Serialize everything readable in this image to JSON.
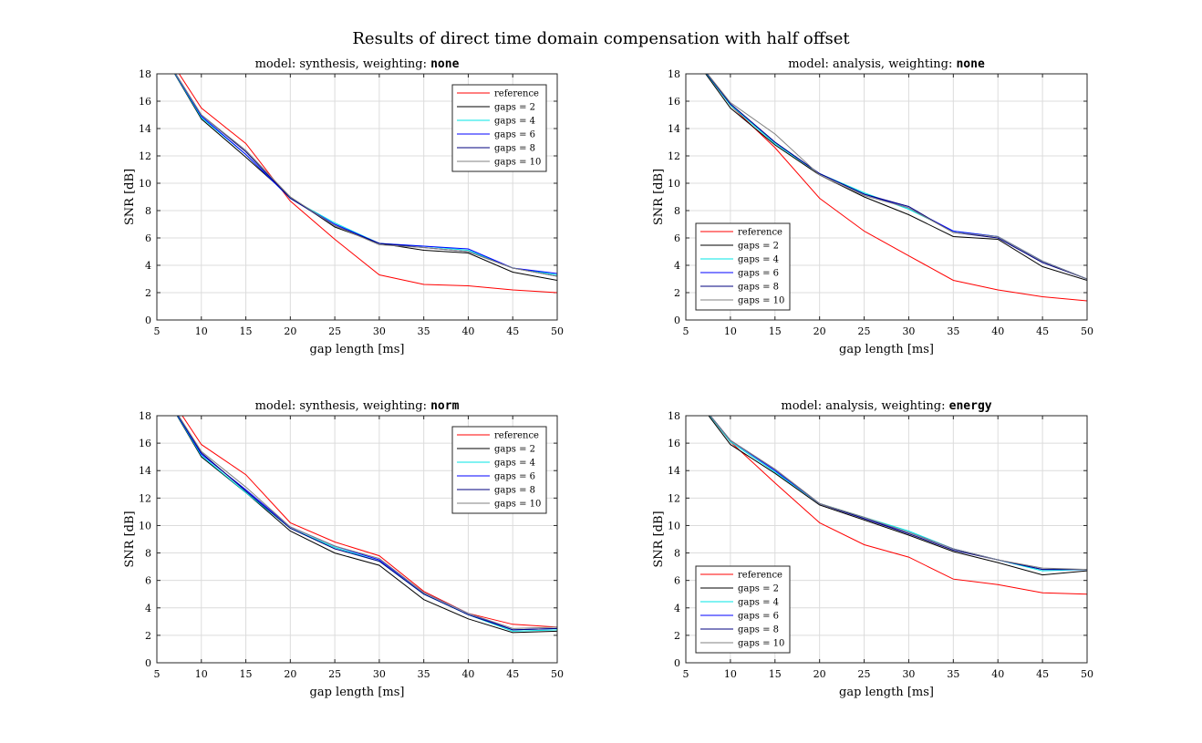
{
  "figure": {
    "title": "Results of direct time domain compensation with half offset"
  },
  "chart_data": [
    {
      "type": "line",
      "title_prefix": "model: synthesis, weighting: ",
      "title_code": "none",
      "xlabel": "gap length [ms]",
      "ylabel": "SNR [dB]",
      "xlim": [
        5,
        50
      ],
      "ylim": [
        0,
        18
      ],
      "xticks": [
        5,
        10,
        15,
        20,
        25,
        30,
        35,
        40,
        45,
        50
      ],
      "yticks": [
        0,
        2,
        4,
        6,
        8,
        10,
        12,
        14,
        16,
        18
      ],
      "grid": true,
      "legend_position": "top-right",
      "x": [
        5,
        10,
        15,
        20,
        25,
        30,
        35,
        40,
        45,
        50
      ],
      "series": [
        {
          "name": "reference",
          "color": "#ff0000",
          "values": [
            20.5,
            15.5,
            12.9,
            8.7,
            5.9,
            3.3,
            2.6,
            2.5,
            2.2,
            2.0
          ]
        },
        {
          "name": "gaps = 2",
          "color": "#000000",
          "values": [
            20.2,
            14.7,
            11.9,
            9.0,
            6.8,
            5.6,
            5.1,
            4.9,
            3.5,
            2.9
          ]
        },
        {
          "name": "gaps = 4",
          "color": "#00e5e5",
          "values": [
            20.2,
            14.8,
            12.1,
            8.9,
            7.1,
            5.6,
            5.4,
            5.1,
            3.8,
            3.3
          ]
        },
        {
          "name": "gaps = 6",
          "color": "#0000ff",
          "values": [
            20.2,
            14.9,
            12.1,
            8.9,
            7.0,
            5.6,
            5.4,
            5.2,
            3.8,
            3.4
          ]
        },
        {
          "name": "gaps = 8",
          "color": "#00007f",
          "values": [
            20.2,
            15.0,
            12.3,
            8.9,
            6.9,
            5.6,
            5.3,
            5.0,
            3.8,
            3.2
          ]
        },
        {
          "name": "gaps = 10",
          "color": "#808080",
          "values": [
            20.2,
            15.0,
            12.4,
            9.0,
            6.9,
            5.5,
            5.3,
            5.0,
            3.8,
            3.2
          ]
        }
      ]
    },
    {
      "type": "line",
      "title_prefix": "model: analysis, weighting: ",
      "title_code": "none",
      "xlabel": "gap length [ms]",
      "ylabel": "SNR [dB]",
      "xlim": [
        5,
        50
      ],
      "ylim": [
        0,
        18
      ],
      "xticks": [
        5,
        10,
        15,
        20,
        25,
        30,
        35,
        40,
        45,
        50
      ],
      "yticks": [
        0,
        2,
        4,
        6,
        8,
        10,
        12,
        14,
        16,
        18
      ],
      "grid": true,
      "legend_position": "bottom-left",
      "x": [
        5,
        10,
        15,
        20,
        25,
        30,
        35,
        40,
        45,
        50
      ],
      "series": [
        {
          "name": "reference",
          "color": "#ff0000",
          "values": [
            20.0,
            15.7,
            12.6,
            8.9,
            6.5,
            4.7,
            2.9,
            2.2,
            1.7,
            1.4
          ]
        },
        {
          "name": "gaps = 2",
          "color": "#000000",
          "values": [
            20.0,
            15.5,
            12.8,
            10.6,
            9.0,
            7.7,
            6.1,
            5.9,
            3.9,
            2.9
          ]
        },
        {
          "name": "gaps = 4",
          "color": "#00e5e5",
          "values": [
            20.0,
            15.7,
            12.9,
            10.7,
            9.3,
            8.1,
            6.5,
            6.1,
            4.3,
            3.0
          ]
        },
        {
          "name": "gaps = 6",
          "color": "#0000ff",
          "values": [
            20.0,
            15.8,
            13.0,
            10.7,
            9.2,
            8.2,
            6.5,
            6.1,
            4.3,
            3.0
          ]
        },
        {
          "name": "gaps = 8",
          "color": "#00007f",
          "values": [
            20.0,
            15.8,
            13.0,
            10.7,
            9.2,
            8.3,
            6.4,
            6.0,
            4.2,
            3.0
          ]
        },
        {
          "name": "gaps = 10",
          "color": "#808080",
          "values": [
            20.0,
            15.9,
            13.6,
            10.6,
            9.1,
            8.2,
            6.4,
            6.1,
            4.3,
            3.0
          ]
        }
      ]
    },
    {
      "type": "line",
      "title_prefix": "model: synthesis, weighting: ",
      "title_code": "norm",
      "xlabel": "gap length [ms]",
      "ylabel": "SNR [dB]",
      "xlim": [
        5,
        50
      ],
      "ylim": [
        0,
        18
      ],
      "xticks": [
        5,
        10,
        15,
        20,
        25,
        30,
        35,
        40,
        45,
        50
      ],
      "yticks": [
        0,
        2,
        4,
        6,
        8,
        10,
        12,
        14,
        16,
        18
      ],
      "grid": true,
      "legend_position": "top-right",
      "x": [
        5,
        10,
        15,
        20,
        25,
        30,
        35,
        40,
        45,
        50
      ],
      "series": [
        {
          "name": "reference",
          "color": "#ff0000",
          "values": [
            20.8,
            15.9,
            13.7,
            10.2,
            8.8,
            7.8,
            5.2,
            3.6,
            2.8,
            2.6
          ]
        },
        {
          "name": "gaps = 2",
          "color": "#000000",
          "values": [
            20.5,
            15.0,
            12.4,
            9.6,
            8.0,
            7.1,
            4.6,
            3.2,
            2.2,
            2.3
          ]
        },
        {
          "name": "gaps = 4",
          "color": "#00e5e5",
          "values": [
            20.5,
            15.1,
            12.4,
            9.8,
            8.4,
            7.4,
            5.0,
            3.5,
            2.3,
            2.4
          ]
        },
        {
          "name": "gaps = 6",
          "color": "#0000ff",
          "values": [
            20.5,
            15.2,
            12.6,
            9.9,
            8.5,
            7.5,
            5.1,
            3.6,
            2.4,
            2.5
          ]
        },
        {
          "name": "gaps = 8",
          "color": "#00007f",
          "values": [
            20.5,
            15.3,
            12.5,
            9.8,
            8.3,
            7.4,
            5.0,
            3.5,
            2.4,
            2.5
          ]
        },
        {
          "name": "gaps = 10",
          "color": "#808080",
          "values": [
            20.5,
            15.4,
            12.8,
            9.9,
            8.5,
            7.6,
            5.1,
            3.6,
            2.5,
            2.6
          ]
        }
      ]
    },
    {
      "type": "line",
      "title_prefix": "model: analysis, weighting: ",
      "title_code": "energy",
      "xlabel": "gap length [ms]",
      "ylabel": "SNR [dB]",
      "xlim": [
        5,
        50
      ],
      "ylim": [
        0,
        18
      ],
      "xticks": [
        5,
        10,
        15,
        20,
        25,
        30,
        35,
        40,
        45,
        50
      ],
      "yticks": [
        0,
        2,
        4,
        6,
        8,
        10,
        12,
        14,
        16,
        18
      ],
      "grid": true,
      "legend_position": "bottom-left",
      "x": [
        5,
        10,
        15,
        20,
        25,
        30,
        35,
        40,
        45,
        50
      ],
      "series": [
        {
          "name": "reference",
          "color": "#ff0000",
          "values": [
            20.2,
            16.1,
            13.1,
            10.2,
            8.6,
            7.7,
            6.1,
            5.7,
            5.1,
            5.0
          ]
        },
        {
          "name": "gaps = 2",
          "color": "#000000",
          "values": [
            20.2,
            15.9,
            13.8,
            11.5,
            10.4,
            9.3,
            8.1,
            7.3,
            6.4,
            6.7
          ]
        },
        {
          "name": "gaps = 4",
          "color": "#00e5e5",
          "values": [
            20.2,
            16.1,
            13.9,
            11.6,
            10.6,
            9.6,
            8.3,
            7.5,
            6.7,
            6.8
          ]
        },
        {
          "name": "gaps = 6",
          "color": "#0000ff",
          "values": [
            20.2,
            16.2,
            14.0,
            11.6,
            10.5,
            9.5,
            8.3,
            7.5,
            6.8,
            6.8
          ]
        },
        {
          "name": "gaps = 8",
          "color": "#00007f",
          "values": [
            20.2,
            16.2,
            14.1,
            11.6,
            10.5,
            9.4,
            8.2,
            7.5,
            6.8,
            6.8
          ]
        },
        {
          "name": "gaps = 10",
          "color": "#808080",
          "values": [
            20.2,
            16.2,
            14.1,
            11.6,
            10.6,
            9.5,
            8.3,
            7.5,
            6.9,
            6.8
          ]
        }
      ]
    }
  ]
}
